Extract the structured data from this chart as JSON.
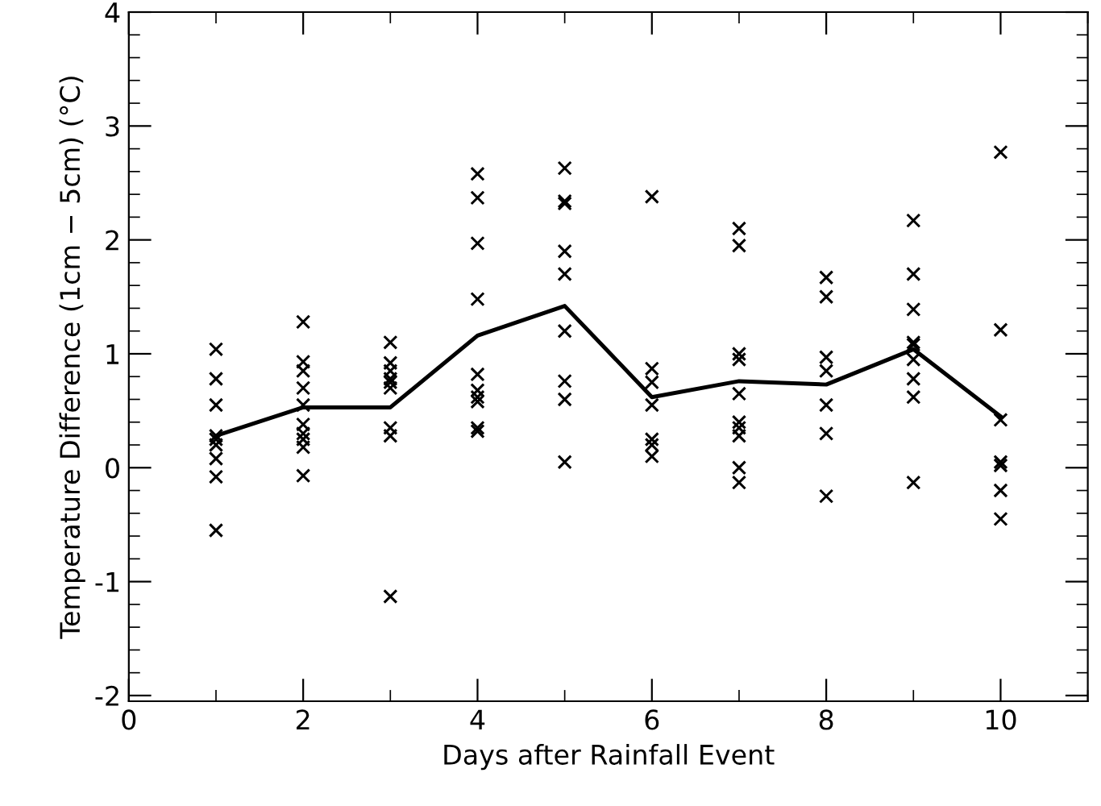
{
  "chart_data": {
    "type": "scatter",
    "xlabel": "Days after Rainfall Event",
    "ylabel": "Temperature Difference (1cm − 5cm) (°C)",
    "xlim": [
      0,
      11
    ],
    "xticks": [
      0,
      2,
      4,
      6,
      8,
      10
    ],
    "ylim": [
      -2.05,
      4
    ],
    "yticks": [
      -2,
      -1,
      0,
      1,
      2,
      3,
      4
    ],
    "marker": "cross",
    "grid": false,
    "legend": false,
    "series": [
      {
        "color": "#000000",
        "x": [
          1,
          1,
          1,
          1,
          1,
          1,
          1,
          1,
          1,
          2,
          2,
          2,
          2,
          2,
          2,
          2,
          2,
          2,
          2,
          3,
          3,
          3,
          3,
          3,
          3,
          3,
          3,
          3,
          4,
          4,
          4,
          4,
          4,
          4,
          4,
          4,
          4,
          4,
          5,
          5,
          5,
          5,
          5,
          5,
          5,
          5,
          5,
          6,
          6,
          6,
          6,
          6,
          6,
          6,
          7,
          7,
          7,
          7,
          7,
          7,
          7,
          7,
          7,
          7,
          8,
          8,
          8,
          8,
          8,
          8,
          8,
          9,
          9,
          9,
          9,
          9,
          9,
          9,
          9,
          9,
          10,
          10,
          10,
          10,
          10,
          10,
          10
        ],
        "values": [
          1.04,
          0.78,
          0.55,
          0.28,
          0.25,
          0.2,
          0.08,
          -0.08,
          -0.55,
          1.28,
          0.93,
          0.85,
          0.7,
          0.55,
          0.38,
          0.3,
          0.25,
          0.18,
          -0.07,
          1.1,
          0.92,
          0.85,
          0.78,
          0.75,
          0.7,
          0.35,
          0.28,
          -1.13,
          2.58,
          2.37,
          1.97,
          1.48,
          0.82,
          0.68,
          0.62,
          0.58,
          0.35,
          0.32,
          2.63,
          2.34,
          2.32,
          1.9,
          1.7,
          1.2,
          0.76,
          0.6,
          0.05,
          2.38,
          0.87,
          0.75,
          0.55,
          0.25,
          0.2,
          0.1,
          2.1,
          1.95,
          1.0,
          0.95,
          0.65,
          0.4,
          0.35,
          0.28,
          0.0,
          -0.13,
          1.67,
          1.5,
          0.97,
          0.85,
          0.55,
          0.3,
          -0.25,
          2.17,
          1.7,
          1.39,
          1.1,
          1.08,
          0.95,
          0.78,
          0.62,
          -0.13,
          2.77,
          1.21,
          0.42,
          0.05,
          0.02,
          -0.2,
          -0.45
        ]
      },
      {
        "type": "line",
        "color": "#000000",
        "marker": "none",
        "line_style": "solid",
        "x": [
          1,
          2,
          3,
          4,
          5,
          6,
          7,
          8,
          9,
          10
        ],
        "values": [
          0.28,
          0.53,
          0.53,
          1.16,
          1.42,
          0.62,
          0.76,
          0.73,
          1.04,
          0.45
        ]
      }
    ]
  }
}
